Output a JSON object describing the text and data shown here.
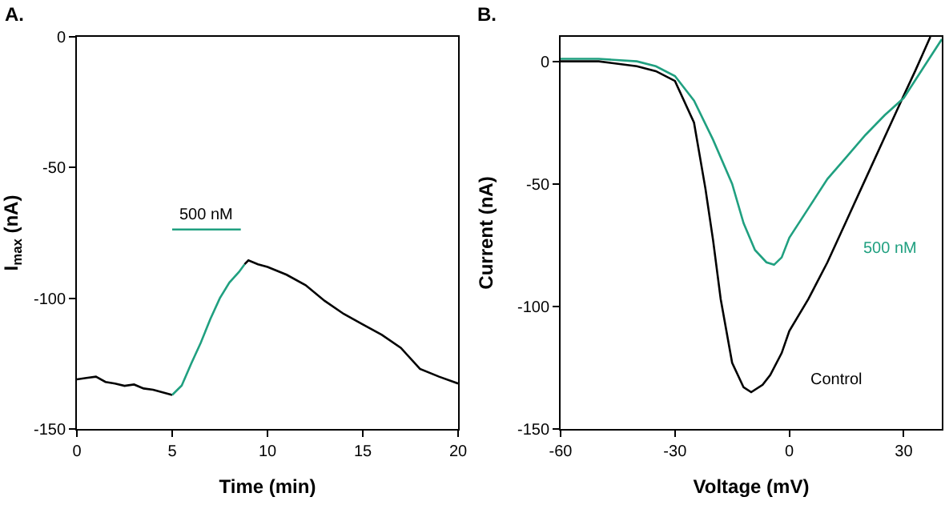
{
  "chart_data": [
    {
      "type": "line",
      "title": "A.",
      "xlabel": "Time (min)",
      "ylabel": "I$_{max}$ (nA)",
      "xlim": [
        0,
        20
      ],
      "ylim": [
        -150,
        0
      ],
      "xticks": [
        0,
        5,
        10,
        15,
        20
      ],
      "yticks": [
        -150,
        -100,
        -50,
        0
      ],
      "grid": false,
      "legend": false,
      "line_style": "solid",
      "marker": "none",
      "series": [
        {
          "color": "#000000",
          "x": [
            0,
            0.5,
            1,
            1.5,
            2,
            2.5,
            3,
            3.5,
            4,
            4.5,
            5
          ],
          "values": [
            -131,
            -130.5,
            -130,
            -132,
            -132.6,
            -133.5,
            -133,
            -134.5,
            -135,
            -136,
            -137
          ]
        },
        {
          "color": "#20a080",
          "x": [
            5,
            5.5,
            6,
            6.5,
            7,
            7.5,
            8,
            8.5,
            8.8
          ],
          "values": [
            -137,
            -133.4,
            -125,
            -117,
            -108,
            -100,
            -94,
            -90,
            -87
          ]
        },
        {
          "color": "#000000",
          "x": [
            8.8,
            9,
            9.5,
            10,
            11,
            12,
            13,
            14,
            15,
            16,
            17,
            18,
            19,
            20
          ],
          "values": [
            -87,
            -85.5,
            -87,
            -88,
            -91,
            -95,
            -101,
            -106,
            -110,
            -114,
            -119,
            -127,
            -130,
            -132.6
          ]
        },
        {
          "name": "500 nM",
          "color": "#20a080",
          "x": [
            5,
            8.6
          ],
          "values": [
            -73.7,
            -73.7
          ]
        }
      ]
    },
    {
      "type": "line",
      "title": "B.",
      "xlabel": "Voltage (mV)",
      "ylabel": "Current (nA)",
      "xlim": [
        -60,
        40
      ],
      "ylim": [
        -150,
        10
      ],
      "xticks": [
        -60,
        -30,
        0,
        30
      ],
      "yticks": [
        -150,
        -100,
        -50,
        0
      ],
      "grid": false,
      "legend": false,
      "line_style": "solid",
      "marker": "none",
      "series": [
        {
          "name": "Control",
          "color": "#000000",
          "x": [
            -60,
            -50,
            -40,
            -35,
            -30,
            -25,
            -22,
            -20,
            -18,
            -15,
            -12,
            -10,
            -7,
            -5,
            -2,
            0,
            5,
            10,
            15,
            20,
            25,
            30,
            33,
            35,
            37
          ],
          "values": [
            0,
            0,
            -2,
            -4,
            -8,
            -25,
            -52,
            -73,
            -97,
            -123,
            -133,
            -135,
            -132,
            -128,
            -119,
            -110,
            -97,
            -82,
            -65,
            -48,
            -31,
            -14,
            -4,
            3,
            10
          ]
        },
        {
          "name": "500 nM",
          "color": "#20a080",
          "x": [
            -60,
            -50,
            -40,
            -35,
            -30,
            -25,
            -20,
            -15,
            -12,
            -9,
            -6,
            -4,
            -2,
            0,
            5,
            10,
            15,
            20,
            25,
            30,
            35,
            40
          ],
          "values": [
            1,
            1,
            0,
            -2,
            -6,
            -16,
            -32,
            -50,
            -66,
            -77,
            -82,
            -83,
            -80,
            -72,
            -60,
            -48,
            -39,
            -30,
            -22,
            -15,
            -3,
            9
          ]
        }
      ]
    }
  ]
}
